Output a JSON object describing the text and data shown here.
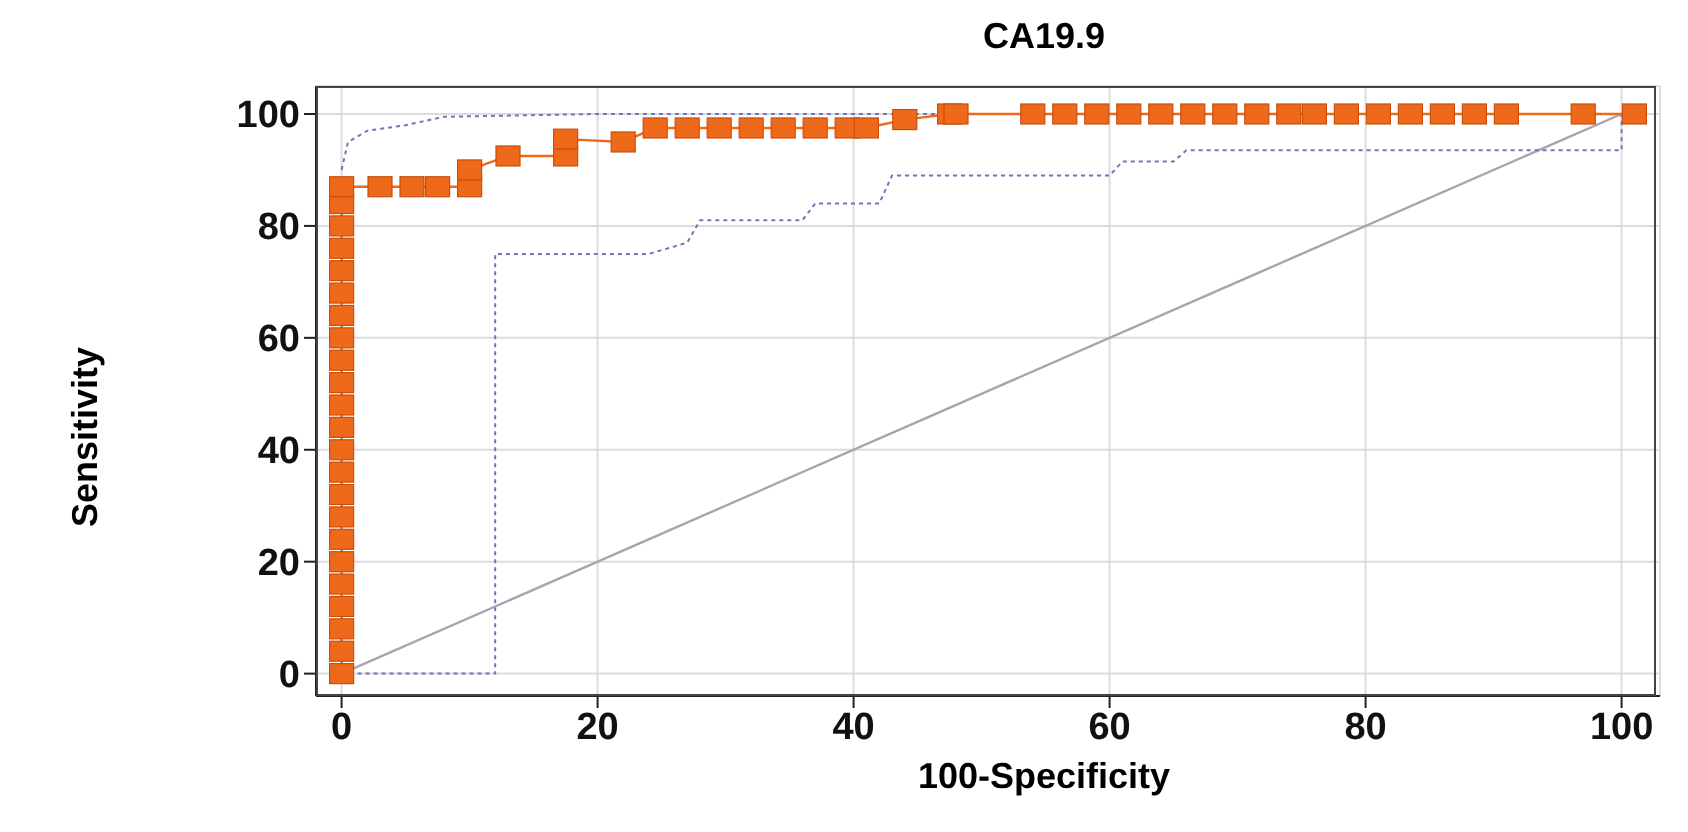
{
  "chart_data": {
    "type": "line",
    "title": "CA19.9",
    "xlabel": "100-Specificity",
    "ylabel": "Sensitivity",
    "xlim": [
      -2,
      103
    ],
    "xticks": [
      0,
      20,
      40,
      60,
      80,
      100
    ],
    "ylim": [
      -4,
      105
    ],
    "yticks": [
      0,
      20,
      40,
      60,
      80,
      100
    ],
    "grid": true,
    "series": [
      {
        "color": "#a8a4b4",
        "marker": "none",
        "line_style": "solid",
        "x": [
          0,
          100
        ],
        "values": [
          0,
          100
        ]
      },
      {
        "color": "#6f75b5",
        "marker": "none",
        "line_style": "dotted",
        "x": [
          0,
          0.5,
          2,
          5,
          8,
          20,
          100
        ],
        "values": [
          90,
          95,
          97,
          98,
          99.5,
          100,
          100
        ]
      },
      {
        "color": "#6f75b5",
        "marker": "none",
        "line_style": "dotted",
        "x": [
          0,
          12,
          12,
          24,
          27,
          28,
          36,
          37,
          42,
          43,
          60,
          61,
          65,
          66,
          100,
          100
        ],
        "values": [
          0,
          0,
          75,
          75,
          77,
          81,
          81,
          84,
          84,
          89,
          89,
          91.5,
          91.5,
          93.5,
          93.5,
          100
        ]
      },
      {
        "color": "#ee6a1a",
        "marker": "square",
        "line_style": "solid",
        "x": [
          0,
          0,
          0,
          0,
          0,
          0,
          0,
          0,
          0,
          0,
          0,
          0,
          0,
          0,
          0,
          0,
          0,
          0,
          0,
          0,
          0,
          0,
          0,
          3,
          5.5,
          7.5,
          10,
          10,
          13,
          17.5,
          17.5,
          22,
          24.5,
          27,
          29.5,
          32,
          34.5,
          37,
          39.5,
          41,
          44,
          47.5,
          48,
          54,
          56.5,
          59,
          61.5,
          64,
          66.5,
          69,
          71.5,
          74,
          76,
          78.5,
          81,
          83.5,
          86,
          88.5,
          91,
          97,
          101
        ],
        "values": [
          0,
          4,
          8,
          12,
          16,
          20,
          24,
          28,
          32,
          36,
          40,
          44,
          48,
          52,
          56,
          60,
          64,
          68,
          72,
          76,
          80,
          84,
          87,
          87,
          87,
          87,
          87,
          90,
          92.5,
          92.5,
          95.5,
          95,
          97.5,
          97.5,
          97.5,
          97.5,
          97.5,
          97.5,
          97.5,
          97.5,
          99,
          100,
          100,
          100,
          100,
          100,
          100,
          100,
          100,
          100,
          100,
          100,
          100,
          100,
          100,
          100,
          100,
          100,
          100,
          100,
          100
        ]
      }
    ]
  }
}
